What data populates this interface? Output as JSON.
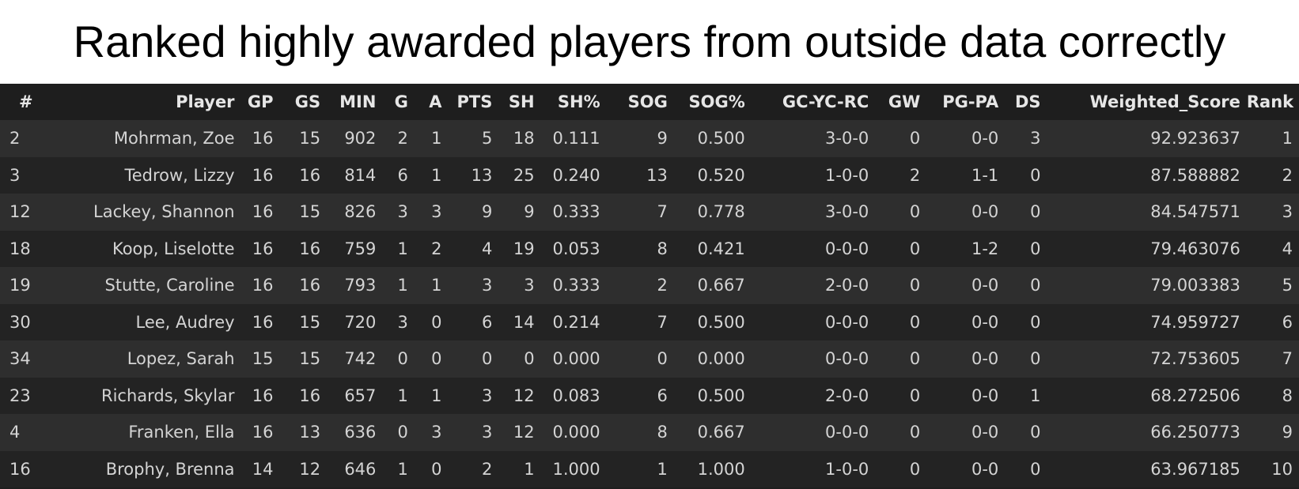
{
  "title": "Ranked highly awarded players from outside data correctly",
  "columns": [
    "#",
    "Player",
    "GP",
    "GS",
    "MIN",
    "G",
    "A",
    "PTS",
    "SH",
    "SH%",
    "SOG",
    "SOG%",
    "GC-YC-RC",
    "GW",
    "PG-PA",
    "DS",
    "Weighted_Score",
    "Rank"
  ],
  "rows": [
    [
      "2",
      "Mohrman, Zoe",
      "16",
      "15",
      "902",
      "2",
      "1",
      "5",
      "18",
      "0.111",
      "9",
      "0.500",
      "3-0-0",
      "0",
      "0-0",
      "3",
      "92.923637",
      "1"
    ],
    [
      "3",
      "Tedrow, Lizzy",
      "16",
      "16",
      "814",
      "6",
      "1",
      "13",
      "25",
      "0.240",
      "13",
      "0.520",
      "1-0-0",
      "2",
      "1-1",
      "0",
      "87.588882",
      "2"
    ],
    [
      "12",
      "Lackey, Shannon",
      "16",
      "15",
      "826",
      "3",
      "3",
      "9",
      "9",
      "0.333",
      "7",
      "0.778",
      "3-0-0",
      "0",
      "0-0",
      "0",
      "84.547571",
      "3"
    ],
    [
      "18",
      "Koop, Liselotte",
      "16",
      "16",
      "759",
      "1",
      "2",
      "4",
      "19",
      "0.053",
      "8",
      "0.421",
      "0-0-0",
      "0",
      "1-2",
      "0",
      "79.463076",
      "4"
    ],
    [
      "19",
      "Stutte, Caroline",
      "16",
      "16",
      "793",
      "1",
      "1",
      "3",
      "3",
      "0.333",
      "2",
      "0.667",
      "2-0-0",
      "0",
      "0-0",
      "0",
      "79.003383",
      "5"
    ],
    [
      "30",
      "Lee, Audrey",
      "16",
      "15",
      "720",
      "3",
      "0",
      "6",
      "14",
      "0.214",
      "7",
      "0.500",
      "0-0-0",
      "0",
      "0-0",
      "0",
      "74.959727",
      "6"
    ],
    [
      "34",
      "Lopez, Sarah",
      "15",
      "15",
      "742",
      "0",
      "0",
      "0",
      "0",
      "0.000",
      "0",
      "0.000",
      "0-0-0",
      "0",
      "0-0",
      "0",
      "72.753605",
      "7"
    ],
    [
      "23",
      "Richards, Skylar",
      "16",
      "16",
      "657",
      "1",
      "1",
      "3",
      "12",
      "0.083",
      "6",
      "0.500",
      "2-0-0",
      "0",
      "0-0",
      "1",
      "68.272506",
      "8"
    ],
    [
      "4",
      "Franken, Ella",
      "16",
      "13",
      "636",
      "0",
      "3",
      "3",
      "12",
      "0.000",
      "8",
      "0.667",
      "0-0-0",
      "0",
      "0-0",
      "0",
      "66.250773",
      "9"
    ],
    [
      "16",
      "Brophy, Brenna",
      "14",
      "12",
      "646",
      "1",
      "0",
      "2",
      "1",
      "1.000",
      "1",
      "1.000",
      "1-0-0",
      "0",
      "0-0",
      "0",
      "63.967185",
      "10"
    ]
  ]
}
